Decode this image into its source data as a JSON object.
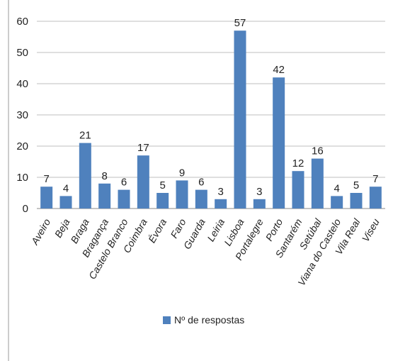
{
  "chart_data": {
    "type": "bar",
    "categories": [
      "Aveiro",
      "Beja",
      "Braga",
      "Bragança",
      "Castelo Branco",
      "Coimbra",
      "Évora",
      "Faro",
      "Guarda",
      "Leiria",
      "Lisboa",
      "Portalegre",
      "Porto",
      "Santarém",
      "Setúbal",
      "Viana do Castelo",
      "Vila Real",
      "Viseu"
    ],
    "series": [
      {
        "name": "Nº de respostas",
        "values": [
          7,
          4,
          21,
          8,
          6,
          17,
          5,
          9,
          6,
          3,
          57,
          3,
          42,
          12,
          16,
          4,
          5,
          7
        ]
      }
    ],
    "yticks": [
      0,
      10,
      20,
      30,
      40,
      50,
      60
    ],
    "ylim": [
      0,
      60
    ],
    "title": "",
    "xlabel": "",
    "ylabel": "",
    "grid": true,
    "legend_position": "bottom",
    "data_labels": true,
    "colors": {
      "bar": "#4f81bd",
      "grid": "#bfbfbf",
      "axis": "#888888",
      "border": "#9a9a9a"
    }
  }
}
